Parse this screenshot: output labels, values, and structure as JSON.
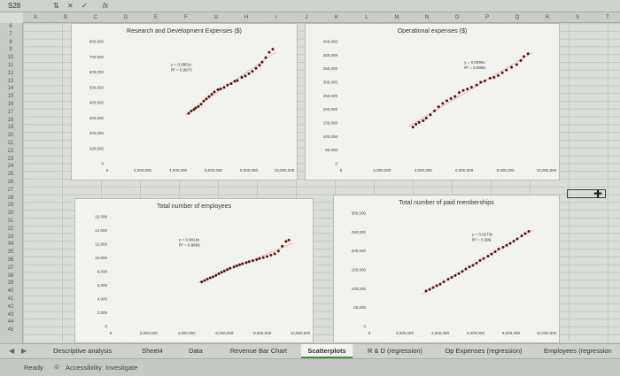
{
  "formula_bar": {
    "name_box": "S28",
    "fx": "fx"
  },
  "columns": [
    "A",
    "B",
    "C",
    "D",
    "E",
    "F",
    "G",
    "H",
    "I",
    "J",
    "K",
    "L",
    "M",
    "N",
    "O",
    "P",
    "Q",
    "R",
    "S",
    "T"
  ],
  "rows": [
    "6",
    "7",
    "8",
    "9",
    "10",
    "11",
    "12",
    "13",
    "14",
    "15",
    "16",
    "17",
    "18",
    "19",
    "20",
    "21",
    "22",
    "23",
    "24",
    "25",
    "26",
    "27",
    "28",
    "29",
    "30",
    "31",
    "32",
    "33",
    "34",
    "35",
    "36",
    "37",
    "38",
    "39",
    "40",
    "41",
    "42",
    "43",
    "44",
    "45"
  ],
  "tabs": [
    {
      "label": "Descriptive analysis"
    },
    {
      "label": "Sheet4"
    },
    {
      "label": "Data"
    },
    {
      "label": "Revenue Bar Chart"
    },
    {
      "label": "Scatterplots"
    },
    {
      "label": "R & D (regression)"
    },
    {
      "label": "Op Expenses (regression)"
    },
    {
      "label": "Employees (regression"
    }
  ],
  "active_tab": "Scatterplots",
  "status": {
    "ready": "Ready",
    "accessibility": "Accessibility: Investigate"
  },
  "colors": {
    "accent": "#4d8a3c",
    "point": "#5a120c",
    "trendline": "#e8a49a"
  },
  "charts": [
    {
      "title": "Research and Development Expenses ($)",
      "equation": "y = 0.0801x",
      "r2": "R² = 0.9973",
      "y_ticks": [
        "800,000",
        "700,000",
        "600,000",
        "500,000",
        "400,000",
        "300,000",
        "200,000",
        "100,000",
        "0"
      ],
      "x_ticks": [
        "0",
        "2,000,000",
        "4,000,000",
        "6,000,000",
        "8,000,000",
        "10,000,000"
      ]
    },
    {
      "title": "Operational expenses ($)",
      "equation": "y = 0.0395x",
      "r2": "R² = 0.9866",
      "y_ticks": [
        "450,000",
        "400,000",
        "350,000",
        "300,000",
        "250,000",
        "200,000",
        "150,000",
        "100,000",
        "50,000",
        "0"
      ],
      "x_ticks": [
        "0",
        "2,000,000",
        "4,000,000",
        "6,000,000",
        "8,000,000",
        "10,000,000"
      ]
    },
    {
      "title": "Total number of employees",
      "equation": "y = 0.0014x",
      "r2": "R² = 0.9869",
      "y_ticks": [
        "16,000",
        "14,000",
        "12,000",
        "10,000",
        "8,000",
        "6,000",
        "4,000",
        "2,000",
        "0"
      ],
      "x_ticks": [
        "0",
        "2,000,000",
        "4,000,000",
        "6,000,000",
        "8,000,000",
        "10,000,000"
      ]
    },
    {
      "title": "Total number of paid memberships",
      "equation": "y = 0.0273x",
      "r2": "R² = 0.999",
      "y_ticks": [
        "300,000",
        "250,000",
        "200,000",
        "150,000",
        "100,000",
        "50,000",
        "0"
      ],
      "x_ticks": [
        "0",
        "2,000,000",
        "4,000,000",
        "6,000,000",
        "8,000,000",
        "10,000,000"
      ]
    }
  ],
  "chart_data": [
    {
      "type": "scatter",
      "title": "Research and Development Expenses ($)",
      "xlim": [
        0,
        10000000
      ],
      "ylim": [
        0,
        800000
      ],
      "trendline": {
        "equation": "y = 0.0801x",
        "r2": "R² = 0.9973"
      },
      "x": [
        4600000,
        4750000,
        4900000,
        5000000,
        5150000,
        5300000,
        5450000,
        5600000,
        5750000,
        5900000,
        6050000,
        6250000,
        6400000,
        6600000,
        6800000,
        7000000,
        7200000,
        7350000,
        7600000,
        7800000,
        8000000,
        8200000,
        8400000,
        8600000,
        8750000,
        8950000,
        9150000,
        9350000
      ],
      "y": [
        330000,
        345000,
        355000,
        365000,
        375000,
        390000,
        410000,
        425000,
        440000,
        455000,
        470000,
        485000,
        490000,
        500000,
        515000,
        525000,
        540000,
        545000,
        565000,
        575000,
        590000,
        605000,
        625000,
        645000,
        665000,
        695000,
        730000,
        750000
      ]
    },
    {
      "type": "scatter",
      "title": "Operational expenses ($)",
      "xlim": [
        0,
        10000000
      ],
      "ylim": [
        0,
        450000
      ],
      "trendline": {
        "equation": "y = 0.0395x",
        "r2": "R² = 0.9866"
      },
      "x": [
        3500000,
        3650000,
        3800000,
        4000000,
        4150000,
        4350000,
        4550000,
        4750000,
        4950000,
        5150000,
        5350000,
        5550000,
        5750000,
        5950000,
        6150000,
        6350000,
        6600000,
        6800000,
        7000000,
        7250000,
        7450000,
        7650000,
        7850000,
        8050000,
        8300000,
        8550000,
        8750000,
        8900000,
        9100000
      ],
      "y": [
        135000,
        145000,
        152000,
        158000,
        168000,
        180000,
        195000,
        210000,
        222000,
        232000,
        240000,
        248000,
        262000,
        270000,
        275000,
        282000,
        290000,
        300000,
        305000,
        315000,
        318000,
        325000,
        335000,
        345000,
        355000,
        365000,
        380000,
        395000,
        405000
      ]
    },
    {
      "type": "scatter",
      "title": "Total number of employees",
      "xlim": [
        0,
        10000000
      ],
      "ylim": [
        0,
        16000
      ],
      "trendline": {
        "equation": "y = 0.0014x",
        "r2": "R² = 0.9869"
      },
      "x": [
        4800000,
        4950000,
        5100000,
        5250000,
        5400000,
        5550000,
        5700000,
        5850000,
        6000000,
        6150000,
        6300000,
        6500000,
        6650000,
        6800000,
        6950000,
        7150000,
        7300000,
        7500000,
        7700000,
        7850000,
        8050000,
        8250000,
        8450000,
        8650000,
        8850000,
        9050000,
        9250000,
        9400000
      ],
      "y": [
        6500,
        6700,
        6900,
        7100,
        7250,
        7450,
        7700,
        7900,
        8100,
        8300,
        8500,
        8700,
        8850,
        9000,
        9150,
        9300,
        9450,
        9600,
        9750,
        9900,
        10050,
        10200,
        10400,
        10600,
        11000,
        11700,
        12400,
        12600
      ]
    },
    {
      "type": "scatter",
      "title": "Total number of paid memberships",
      "xlim": [
        0,
        10000000
      ],
      "ylim": [
        0,
        300000
      ],
      "trendline": {
        "equation": "y = 0.0273x",
        "r2": "R² = 0.999"
      },
      "x": [
        3200000,
        3400000,
        3600000,
        3800000,
        4000000,
        4200000,
        4450000,
        4650000,
        4850000,
        5050000,
        5250000,
        5450000,
        5650000,
        5850000,
        6050000,
        6250000,
        6450000,
        6700000,
        6900000,
        7100000,
        7300000,
        7550000,
        7750000,
        7950000,
        8150000,
        8350000,
        8600000,
        8800000,
        9000000
      ],
      "y": [
        94000,
        98000,
        103000,
        108000,
        112000,
        118000,
        125000,
        130000,
        135000,
        140000,
        146000,
        152000,
        158000,
        162000,
        168000,
        175000,
        180000,
        186000,
        192000,
        198000,
        205000,
        210000,
        215000,
        220000,
        226000,
        232000,
        240000,
        246000,
        252000
      ]
    }
  ]
}
